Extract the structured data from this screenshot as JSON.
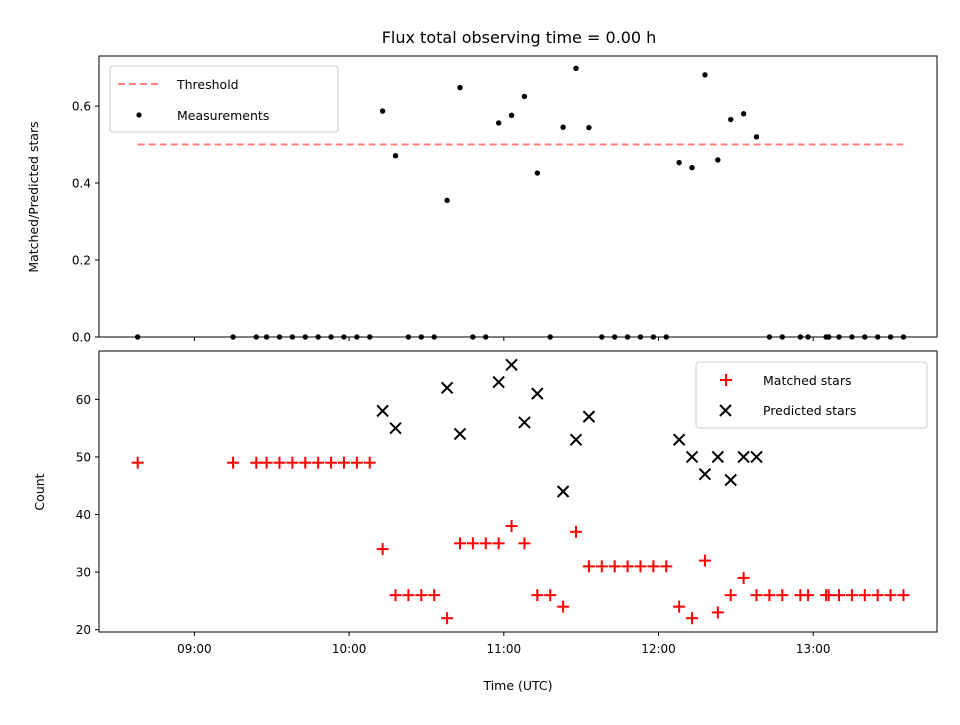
{
  "chart_data": [
    {
      "type": "scatter",
      "title": "Flux total observing time = 0.00 h",
      "xlabel": "",
      "ylabel": "Matched/Predicted stars",
      "ylim": [
        0,
        0.73
      ],
      "yticks": [
        "0.0",
        "0.2",
        "0.4",
        "0.6"
      ],
      "ytick_values": [
        0,
        0.2,
        0.4,
        0.6
      ],
      "legend": {
        "position": "top-left",
        "entries": [
          {
            "label": "Threshold",
            "color": "#ff7f7f",
            "style": "dashed-line"
          },
          {
            "label": "Measurements",
            "color": "#000000",
            "style": "dot"
          }
        ]
      },
      "threshold": {
        "value": 0.5,
        "x_start": "08:38",
        "x_end": "13:35",
        "color": "#ff7f7f"
      },
      "series": [
        {
          "name": "Measurements",
          "color": "#000000",
          "points": [
            [
              "08:38",
              0.0
            ],
            [
              "09:15",
              0.0
            ],
            [
              "09:24",
              0.0
            ],
            [
              "09:28",
              0.0
            ],
            [
              "09:33",
              0.0
            ],
            [
              "09:38",
              0.0
            ],
            [
              "09:43",
              0.0
            ],
            [
              "09:48",
              0.0
            ],
            [
              "09:53",
              0.0
            ],
            [
              "09:58",
              0.0
            ],
            [
              "10:03",
              0.0
            ],
            [
              "10:08",
              0.0
            ],
            [
              "10:13",
              0.587
            ],
            [
              "10:18",
              0.471
            ],
            [
              "10:23",
              0.0
            ],
            [
              "10:28",
              0.0
            ],
            [
              "10:33",
              0.0
            ],
            [
              "10:38",
              0.355
            ],
            [
              "10:43",
              0.648
            ],
            [
              "10:48",
              0.0
            ],
            [
              "10:53",
              0.0
            ],
            [
              "10:58",
              0.556
            ],
            [
              "11:03",
              0.576
            ],
            [
              "11:08",
              0.625
            ],
            [
              "11:13",
              0.426
            ],
            [
              "11:18",
              0.0
            ],
            [
              "11:23",
              0.545
            ],
            [
              "11:28",
              0.698
            ],
            [
              "11:33",
              0.544
            ],
            [
              "11:38",
              0.0
            ],
            [
              "11:43",
              0.0
            ],
            [
              "11:48",
              0.0
            ],
            [
              "11:53",
              0.0
            ],
            [
              "11:58",
              0.0
            ],
            [
              "12:03",
              0.0
            ],
            [
              "12:08",
              0.453
            ],
            [
              "12:13",
              0.44
            ],
            [
              "12:18",
              0.681
            ],
            [
              "12:23",
              0.46
            ],
            [
              "12:28",
              0.565
            ],
            [
              "12:33",
              0.58
            ],
            [
              "12:38",
              0.52
            ],
            [
              "12:43",
              0.0
            ],
            [
              "12:48",
              0.0
            ],
            [
              "12:55",
              0.0
            ],
            [
              "12:58",
              0.0
            ],
            [
              "13:05",
              0.0
            ],
            [
              "13:06",
              0.0
            ],
            [
              "13:10",
              0.0
            ],
            [
              "13:15",
              0.0
            ],
            [
              "13:20",
              0.0
            ],
            [
              "13:25",
              0.0
            ],
            [
              "13:30",
              0.0
            ],
            [
              "13:35",
              0.0
            ]
          ]
        }
      ]
    },
    {
      "type": "scatter",
      "title": "",
      "xlabel": "Time (UTC)",
      "ylabel": "Count",
      "ylim": [
        19.6,
        68.4
      ],
      "xlim": [
        "08:23",
        "13:48"
      ],
      "xticks": [
        "09:00",
        "10:00",
        "11:00",
        "12:00",
        "13:00"
      ],
      "yticks": [
        "20",
        "30",
        "40",
        "50",
        "60"
      ],
      "ytick_values": [
        20,
        30,
        40,
        50,
        60
      ],
      "legend": {
        "position": "top-right",
        "entries": [
          {
            "label": "Matched stars",
            "color": "#ff0000",
            "style": "plus"
          },
          {
            "label": "Predicted stars",
            "color": "#000000",
            "style": "x"
          }
        ]
      },
      "series": [
        {
          "name": "Matched stars",
          "color": "#ff0000",
          "marker": "plus",
          "points": [
            [
              "08:38",
              49
            ],
            [
              "09:15",
              49
            ],
            [
              "09:24",
              49
            ],
            [
              "09:28",
              49
            ],
            [
              "09:33",
              49
            ],
            [
              "09:38",
              49
            ],
            [
              "09:43",
              49
            ],
            [
              "09:48",
              49
            ],
            [
              "09:53",
              49
            ],
            [
              "09:58",
              49
            ],
            [
              "10:03",
              49
            ],
            [
              "10:08",
              49
            ],
            [
              "10:13",
              34
            ],
            [
              "10:18",
              26
            ],
            [
              "10:23",
              26
            ],
            [
              "10:28",
              26
            ],
            [
              "10:33",
              26
            ],
            [
              "10:38",
              22
            ],
            [
              "10:43",
              35
            ],
            [
              "10:48",
              35
            ],
            [
              "10:53",
              35
            ],
            [
              "10:58",
              35
            ],
            [
              "11:03",
              38
            ],
            [
              "11:08",
              35
            ],
            [
              "11:13",
              26
            ],
            [
              "11:18",
              26
            ],
            [
              "11:23",
              24
            ],
            [
              "11:28",
              37
            ],
            [
              "11:33",
              31
            ],
            [
              "11:38",
              31
            ],
            [
              "11:43",
              31
            ],
            [
              "11:48",
              31
            ],
            [
              "11:53",
              31
            ],
            [
              "11:58",
              31
            ],
            [
              "12:03",
              31
            ],
            [
              "12:08",
              24
            ],
            [
              "12:13",
              22
            ],
            [
              "12:18",
              32
            ],
            [
              "12:23",
              23
            ],
            [
              "12:28",
              26
            ],
            [
              "12:33",
              29
            ],
            [
              "12:38",
              26
            ],
            [
              "12:43",
              26
            ],
            [
              "12:48",
              26
            ],
            [
              "12:55",
              26
            ],
            [
              "12:58",
              26
            ],
            [
              "13:05",
              26
            ],
            [
              "13:06",
              26
            ],
            [
              "13:10",
              26
            ],
            [
              "13:15",
              26
            ],
            [
              "13:20",
              26
            ],
            [
              "13:25",
              26
            ],
            [
              "13:30",
              26
            ],
            [
              "13:35",
              26
            ]
          ]
        },
        {
          "name": "Predicted stars",
          "color": "#000000",
          "marker": "x",
          "points": [
            [
              "10:13",
              58
            ],
            [
              "10:18",
              55
            ],
            [
              "10:38",
              62
            ],
            [
              "10:43",
              54
            ],
            [
              "10:58",
              63
            ],
            [
              "11:03",
              66
            ],
            [
              "11:08",
              56
            ],
            [
              "11:13",
              61
            ],
            [
              "11:23",
              44
            ],
            [
              "11:28",
              53
            ],
            [
              "11:33",
              57
            ],
            [
              "12:08",
              53
            ],
            [
              "12:13",
              50
            ],
            [
              "12:18",
              47
            ],
            [
              "12:23",
              50
            ],
            [
              "12:28",
              46
            ],
            [
              "12:33",
              50
            ],
            [
              "12:38",
              50
            ]
          ]
        }
      ]
    }
  ]
}
